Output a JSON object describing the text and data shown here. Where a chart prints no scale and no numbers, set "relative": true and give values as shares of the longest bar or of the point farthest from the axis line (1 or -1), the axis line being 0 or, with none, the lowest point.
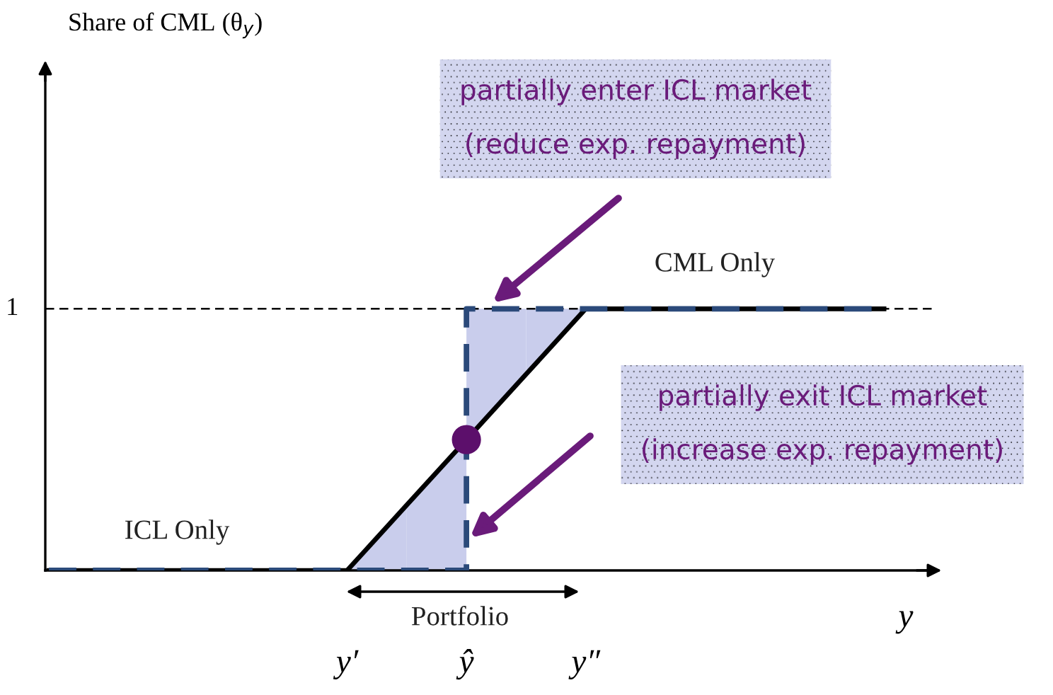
{
  "chart_data": {
    "type": "line",
    "relative": true,
    "xlabel": "y",
    "categories": [
      null,
      null,
      null,
      null,
      null,
      "y′",
      null,
      "ŷ",
      null,
      "y″",
      null,
      null,
      null,
      null,
      null
    ],
    "series": [
      {
        "color": "#000000",
        "line_style": "solid",
        "values": [
          0,
          0,
          0,
          0,
          0,
          0,
          0.25,
          0.5,
          0.75,
          1,
          1,
          1,
          1,
          1,
          1
        ]
      },
      {
        "type": "step",
        "color": "#2b4a7a",
        "line_style": "dashed",
        "values": [
          0,
          0,
          0,
          0,
          0,
          0,
          0,
          1,
          1,
          1,
          1,
          1,
          1,
          1,
          1
        ]
      },
      {
        "type": "scatter",
        "color": "#5c0f6b",
        "marker": "circle",
        "values": [
          null,
          null,
          null,
          null,
          null,
          null,
          null,
          0.5,
          null,
          null,
          null,
          null,
          null,
          null,
          null
        ]
      }
    ],
    "ref_lines": [
      {
        "axis": "y",
        "value": 1,
        "label": "1",
        "color": "#000000",
        "line_style": "dashed"
      }
    ],
    "annotations": [
      "partially enter ICL market\n(reduce exp. repayment)",
      "partially exit ICL market\n(increase exp. repayment)",
      "CML Only",
      "ICL Only",
      "Portfolio",
      "Share of CML (θ$_{y}$)"
    ]
  }
}
